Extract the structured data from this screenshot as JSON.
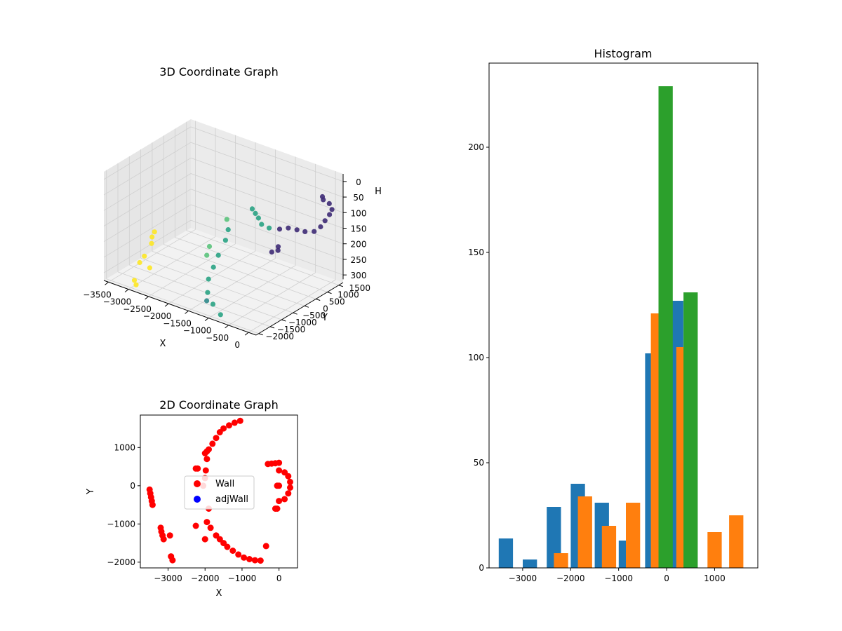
{
  "colors": {
    "hist_series": [
      "#1f77b4",
      "#ff7f0e",
      "#2ca02c"
    ],
    "wall": "#ff0000",
    "adjwall": "#0000ff",
    "viridis": [
      "#3e2b76",
      "#2f8a8b",
      "#2aa384",
      "#5bc37c",
      "#fde725"
    ]
  },
  "chart_data": [
    {
      "type": "scatter",
      "projection": "3d",
      "title": "3D Coordinate Graph",
      "xlabel": "X",
      "ylabel": "Y",
      "zlabel": "H",
      "x_ticks": [
        "−3500",
        "−3000",
        "−2500",
        "−2000",
        "−1500",
        "−1000",
        "−500",
        "0"
      ],
      "y_ticks": [
        "−2000",
        "−1500",
        "−1000",
        "−500",
        "0",
        "500",
        "1000",
        "1500"
      ],
      "z_ticks": [
        "0",
        "50",
        "100",
        "150",
        "200",
        "250",
        "300"
      ],
      "xlim": [
        -3600,
        200
      ],
      "ylim": [
        -2100,
        1800
      ],
      "zlim": [
        0,
        320
      ],
      "z_inverted": true,
      "grid": true,
      "series": [
        {
          "color_index": 0,
          "points": [
            [
              -150,
              1500,
              70
            ],
            [
              -100,
              1450,
              75
            ],
            [
              50,
              1450,
              80
            ],
            [
              200,
              1300,
              85
            ],
            [
              250,
              1100,
              90
            ],
            [
              250,
              900,
              100
            ],
            [
              250,
              700,
              110
            ],
            [
              200,
              500,
              118
            ],
            [
              0,
              450,
              125
            ],
            [
              -200,
              450,
              128
            ],
            [
              -400,
              420,
              130
            ],
            [
              -550,
              300,
              135
            ],
            [
              -250,
              -300,
              150
            ],
            [
              -200,
              -400,
              155
            ],
            [
              -300,
              -500,
              160
            ]
          ]
        },
        {
          "color_index": 1,
          "points": [
            [
              -1200,
              -1800,
              290
            ]
          ]
        },
        {
          "color_index": 2,
          "points": [
            [
              -700,
              100,
              130
            ],
            [
              -1000,
              300,
              140
            ],
            [
              -1300,
              700,
              150
            ],
            [
              -1600,
              1100,
              165
            ],
            [
              -1900,
              1500,
              180
            ],
            [
              -2000,
              600,
              210
            ],
            [
              -1900,
              300,
              225
            ],
            [
              -1800,
              -200,
              245
            ],
            [
              -1700,
              -600,
              260
            ],
            [
              -1600,
              -1000,
              275
            ],
            [
              -1400,
              -1400,
              290
            ],
            [
              -1100,
              -1700,
              300
            ],
            [
              -800,
              -1900,
              310
            ]
          ]
        },
        {
          "color_index": 3,
          "points": [
            [
              -2200,
              900,
              200
            ],
            [
              -2300,
              300,
              260
            ],
            [
              -2200,
              0,
              270
            ]
          ]
        },
        {
          "color_index": 4,
          "points": [
            [
              -3450,
              -100,
              250
            ],
            [
              -3400,
              -300,
              255
            ],
            [
              -3300,
              -500,
              262
            ],
            [
              -3200,
              -1000,
              275
            ],
            [
              -3150,
              -1300,
              280
            ],
            [
              -2900,
              -1300,
              285
            ],
            [
              -2950,
              -1900,
              300
            ],
            [
              -2850,
              -2000,
              305
            ]
          ]
        }
      ]
    },
    {
      "type": "scatter",
      "title": "2D Coordinate Graph",
      "xlabel": "X",
      "ylabel": "Y",
      "xlim": [
        -3750,
        500
      ],
      "ylim": [
        -2150,
        1850
      ],
      "x_ticks": [
        -3000,
        -2000,
        -1000,
        0
      ],
      "y_ticks": [
        -2000,
        -1000,
        0,
        1000
      ],
      "legend": {
        "placement": "center",
        "entries": [
          "Wall",
          "adjWall"
        ]
      },
      "series": [
        {
          "name": "Wall",
          "points": [
            [
              -3500,
              -100
            ],
            [
              -3480,
              -200
            ],
            [
              -3460,
              -300
            ],
            [
              -3440,
              -400
            ],
            [
              -3420,
              -500
            ],
            [
              -3200,
              -1100
            ],
            [
              -3180,
              -1200
            ],
            [
              -3150,
              -1300
            ],
            [
              -3120,
              -1400
            ],
            [
              -2950,
              -1300
            ],
            [
              -2920,
              -1850
            ],
            [
              -2880,
              -1950
            ],
            [
              -2250,
              450
            ],
            [
              -2200,
              450
            ],
            [
              -2250,
              -1050
            ],
            [
              -2000,
              850
            ],
            [
              -1950,
              900
            ],
            [
              -1900,
              950
            ],
            [
              -1800,
              1100
            ],
            [
              -1700,
              1250
            ],
            [
              -1600,
              1400
            ],
            [
              -1500,
              1500
            ],
            [
              -1350,
              1580
            ],
            [
              -1200,
              1650
            ],
            [
              -1050,
              1700
            ],
            [
              -1950,
              700
            ],
            [
              -1980,
              400
            ],
            [
              -2000,
              200
            ],
            [
              -2050,
              0
            ],
            [
              -1900,
              -600
            ],
            [
              -1950,
              -950
            ],
            [
              -1850,
              -1100
            ],
            [
              -2000,
              -1400
            ],
            [
              -1700,
              -1300
            ],
            [
              -1600,
              -1400
            ],
            [
              -1500,
              -1500
            ],
            [
              -1400,
              -1600
            ],
            [
              -1250,
              -1700
            ],
            [
              -1100,
              -1800
            ],
            [
              -950,
              -1880
            ],
            [
              -800,
              -1920
            ],
            [
              -650,
              -1950
            ],
            [
              -500,
              -1960
            ],
            [
              -350,
              -1580
            ],
            [
              -300,
              570
            ],
            [
              -200,
              580
            ],
            [
              -100,
              590
            ],
            [
              0,
              600
            ],
            [
              -50,
              0
            ],
            [
              0,
              0
            ],
            [
              -100,
              -600
            ],
            [
              -50,
              -600
            ],
            [
              0,
              400
            ],
            [
              150,
              350
            ],
            [
              250,
              250
            ],
            [
              300,
              100
            ],
            [
              300,
              -50
            ],
            [
              250,
              -200
            ],
            [
              150,
              -350
            ],
            [
              0,
              -400
            ]
          ]
        },
        {
          "name": "adjWall",
          "points": []
        }
      ]
    },
    {
      "type": "bar",
      "title": "Histogram",
      "xlim": [
        -3700,
        1900
      ],
      "ylim": [
        0,
        240
      ],
      "x_ticks": [
        -3000,
        -2000,
        -1000,
        0,
        1000
      ],
      "y_ticks": [
        0,
        50,
        100,
        150,
        200
      ],
      "bin_width": 500,
      "series": [
        {
          "values": [
            [
              -3350,
              14
            ],
            [
              -2850,
              4
            ],
            [
              -2350,
              29
            ],
            [
              -1850,
              40
            ],
            [
              -1350,
              31
            ],
            [
              -850,
              13
            ],
            [
              -300,
              102
            ],
            [
              200,
              127
            ]
          ]
        },
        {
          "values": [
            [
              -2200,
              7
            ],
            [
              -1700,
              34
            ],
            [
              -1200,
              20
            ],
            [
              -700,
              31
            ],
            [
              -180,
              121
            ],
            [
              350,
              105
            ],
            [
              1000,
              17
            ],
            [
              1450,
              25
            ]
          ]
        },
        {
          "values": [
            [
              -20,
              229
            ],
            [
              500,
              131
            ]
          ]
        }
      ]
    }
  ]
}
